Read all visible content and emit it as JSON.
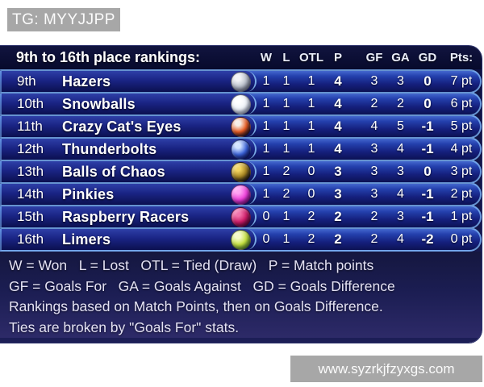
{
  "overlays": {
    "tg_label": "TG: MYYJJPP",
    "watermark": "www.syzrkjfzyxgs.com",
    "box_color": "#a7a7a7"
  },
  "table": {
    "title": "9th to 16th place rankings:",
    "columns": [
      "W",
      "L",
      "OTL",
      "P",
      "GF",
      "GA",
      "GD",
      "Pts:"
    ],
    "pts_suffix": "pt",
    "rows": [
      {
        "rank": "9th",
        "team": "Hazers",
        "marble": "hazers-marble-icon",
        "marble_colors": [
          "#f2f3f6",
          "#b9bfca",
          "#7d8494"
        ],
        "w": 1,
        "l": 1,
        "otl": 1,
        "p": 4,
        "gf": 3,
        "ga": 3,
        "gd": "0",
        "pts": 7
      },
      {
        "rank": "10th",
        "team": "Snowballs",
        "marble": "snowballs-marble-icon",
        "marble_colors": [
          "#ffffff",
          "#eef2f8",
          "#b9c5d6"
        ],
        "w": 1,
        "l": 1,
        "otl": 1,
        "p": 4,
        "gf": 2,
        "ga": 2,
        "gd": "0",
        "pts": 6
      },
      {
        "rank": "11th",
        "team": "Crazy Cat's Eyes",
        "marble": "crazy-cats-eyes-marble-icon",
        "marble_colors": [
          "#f6efe7",
          "#e85a20",
          "#27161c"
        ],
        "w": 1,
        "l": 1,
        "otl": 1,
        "p": 4,
        "gf": 4,
        "ga": 5,
        "gd": "-1",
        "pts": 5
      },
      {
        "rank": "12th",
        "team": "Thunderbolts",
        "marble": "thunderbolts-marble-icon",
        "marble_colors": [
          "#d3e4ff",
          "#3c64da",
          "#131e78"
        ],
        "w": 1,
        "l": 1,
        "otl": 1,
        "p": 4,
        "gf": 3,
        "ga": 4,
        "gd": "-1",
        "pts": 4
      },
      {
        "rank": "13th",
        "team": "Balls of Chaos",
        "marble": "balls-of-chaos-marble-icon",
        "marble_colors": [
          "#f2d35e",
          "#a07f20",
          "#16130b"
        ],
        "w": 1,
        "l": 2,
        "otl": 0,
        "p": 3,
        "gf": 3,
        "ga": 3,
        "gd": "0",
        "pts": 3
      },
      {
        "rank": "14th",
        "team": "Pinkies",
        "marble": "pinkies-marble-icon",
        "marble_colors": [
          "#ffa2f2",
          "#ee41da",
          "#9c1390"
        ],
        "w": 1,
        "l": 2,
        "otl": 0,
        "p": 3,
        "gf": 3,
        "ga": 4,
        "gd": "-1",
        "pts": 2
      },
      {
        "rank": "15th",
        "team": "Raspberry Racers",
        "marble": "raspberry-racers-marble-icon",
        "marble_colors": [
          "#f272ab",
          "#cb1b66",
          "#750b3a"
        ],
        "w": 0,
        "l": 1,
        "otl": 2,
        "p": 2,
        "gf": 2,
        "ga": 3,
        "gd": "-1",
        "pts": 1
      },
      {
        "rank": "16th",
        "team": "Limers",
        "marble": "limers-marble-icon",
        "marble_colors": [
          "#f4f9c6",
          "#c4e13e",
          "#5e9a27"
        ],
        "w": 0,
        "l": 1,
        "otl": 2,
        "p": 2,
        "gf": 2,
        "ga": 4,
        "gd": "-2",
        "pts": 0
      }
    ]
  },
  "legend": {
    "lines": [
      "W = Won   L = Lost   OTL = Tied (Draw)   P = Match points",
      "GF = Goals For   GA = Goals Against   GD = Goals Difference",
      "Rankings based on Match Points, then on Goals Difference.",
      "Ties are broken by \"Goals For\" stats."
    ]
  },
  "colors": {
    "row_blue_top": "#4468cf",
    "row_blue_bottom": "#0c1254",
    "outline_blue": "#84b9ef",
    "header_navy": "#090c34",
    "footer_navy": "#1b1d52",
    "page_bg": "#ffffff"
  }
}
